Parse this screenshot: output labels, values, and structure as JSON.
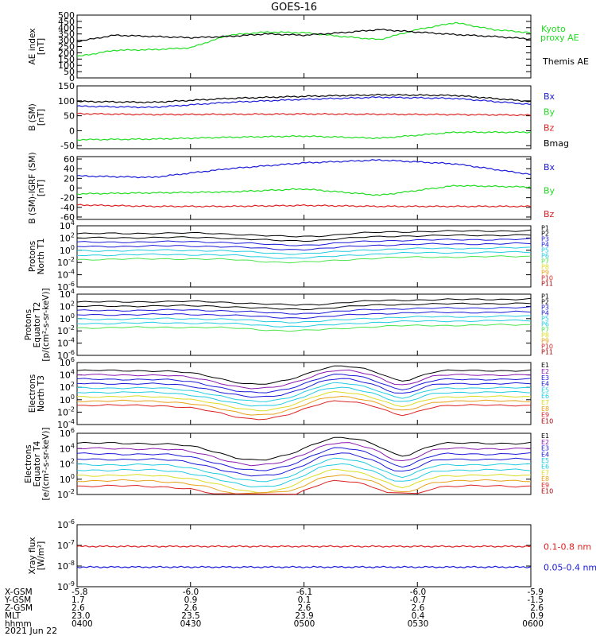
{
  "title": "GOES-16",
  "footer_date": "2021 Jun 22",
  "colors": {
    "black": "#000000",
    "green": "#22dd22",
    "blue": "#1a1ad8",
    "red": "#dd2222",
    "violet": "#8a1ab0",
    "cyan": "#22cce0",
    "lightgreen": "#4ee54e",
    "yellow": "#dcdc22",
    "orange": "#e8a018",
    "darkred": "#cc1111",
    "maroon": "#aa0000"
  },
  "chart_data": [
    {
      "id": "ae",
      "type": "line",
      "ylabel": [
        "AE index",
        "[nT]"
      ],
      "ylim": [
        0,
        500
      ],
      "yticks": [
        "0",
        "50",
        "100",
        "150",
        "200",
        "250",
        "300",
        "350",
        "400",
        "450",
        "500"
      ],
      "series": [
        {
          "name": "Kyoto proxy AE",
          "color": "green",
          "x": [
            0,
            10,
            20,
            30,
            40,
            50,
            60,
            70,
            80,
            90,
            100,
            110,
            120
          ],
          "y": [
            170,
            220,
            225,
            240,
            340,
            365,
            360,
            330,
            305,
            385,
            440,
            385,
            360
          ]
        },
        {
          "name": "Themis AE",
          "color": "black",
          "x": [
            0,
            10,
            20,
            30,
            40,
            50,
            60,
            70,
            80,
            90,
            100,
            110,
            120
          ],
          "y": [
            290,
            340,
            330,
            320,
            330,
            350,
            340,
            360,
            385,
            365,
            345,
            330,
            310
          ]
        }
      ]
    },
    {
      "id": "bsm",
      "type": "line",
      "ylabel": [
        "B (SM)",
        "[nT]"
      ],
      "ylim": [
        -60,
        150
      ],
      "yticks": [
        "-50",
        "0",
        "50",
        "100",
        "150"
      ],
      "series": [
        {
          "name": "Bx",
          "color": "blue",
          "x": [
            0,
            20,
            40,
            60,
            80,
            100,
            120
          ],
          "y": [
            82,
            78,
            95,
            105,
            112,
            108,
            88
          ]
        },
        {
          "name": "By",
          "color": "green",
          "x": [
            0,
            20,
            40,
            60,
            80,
            100,
            120
          ],
          "y": [
            -30,
            -28,
            -22,
            -18,
            -25,
            -5,
            -5
          ]
        },
        {
          "name": "Bz",
          "color": "red",
          "x": [
            0,
            20,
            40,
            60,
            80,
            100,
            120
          ],
          "y": [
            57,
            54,
            55,
            56,
            55,
            54,
            52
          ]
        },
        {
          "name": "Bmag",
          "color": "black",
          "x": [
            0,
            20,
            40,
            60,
            80,
            100,
            120
          ],
          "y": [
            98,
            95,
            108,
            115,
            120,
            118,
            98
          ]
        }
      ]
    },
    {
      "id": "bigrf",
      "type": "line",
      "ylabel": [
        "B (SM)-IGRF (SM)",
        "[nT]"
      ],
      "ylim": [
        -65,
        65
      ],
      "yticks": [
        "-60",
        "-40",
        "-20",
        "0",
        "20",
        "40",
        "60"
      ],
      "series": [
        {
          "name": "Bx",
          "color": "blue",
          "x": [
            0,
            20,
            40,
            60,
            80,
            100,
            120
          ],
          "y": [
            25,
            22,
            40,
            52,
            58,
            50,
            28
          ]
        },
        {
          "name": "By",
          "color": "green",
          "x": [
            0,
            20,
            40,
            60,
            80,
            100,
            120
          ],
          "y": [
            -12,
            -10,
            -8,
            -2,
            -15,
            5,
            2
          ]
        },
        {
          "name": "Bz",
          "color": "red",
          "x": [
            0,
            20,
            40,
            60,
            80,
            100,
            120
          ],
          "y": [
            -35,
            -38,
            -38,
            -36,
            -38,
            -38,
            -38
          ]
        }
      ]
    },
    {
      "id": "pnorth",
      "type": "line",
      "ylabel": [
        "Protons",
        "North T1"
      ],
      "ylog": true,
      "ylim": [
        -6,
        4
      ],
      "yticks": [
        "10^-6",
        "10^-4",
        "10^-2",
        "10^0",
        "10^2",
        "10^4"
      ],
      "legend": [
        "P1",
        "P2",
        "P3",
        "P4",
        "P5",
        "P6",
        "P7",
        "P8",
        "P9",
        "P10",
        "P11"
      ]
    },
    {
      "id": "peq",
      "type": "line",
      "ylabel": [
        "Protons",
        "Equator T2",
        "[p/(cm²-s-sr-keV)]"
      ],
      "ylog": true,
      "ylim": [
        -6,
        4
      ],
      "yticks": [
        "10^-6",
        "10^-4",
        "10^-2",
        "10^0",
        "10^2",
        "10^4"
      ],
      "legend": [
        "P1",
        "P2",
        "P3",
        "P4",
        "P5",
        "P6",
        "P7",
        "P8",
        "P9",
        "P10",
        "P11"
      ]
    },
    {
      "id": "enorth",
      "type": "line",
      "ylabel": [
        "Electrons",
        "North T3"
      ],
      "ylog": true,
      "ylim": [
        -4,
        6
      ],
      "yticks": [
        "10^-4",
        "10^-2",
        "10^0",
        "10^2",
        "10^4",
        "10^6"
      ],
      "legend": [
        "E1",
        "E2",
        "E3",
        "E4",
        "E5",
        "E6",
        "E7",
        "E8",
        "E9",
        "E10"
      ]
    },
    {
      "id": "eeq",
      "type": "line",
      "ylabel": [
        "Electrons",
        "Equator T4",
        "[e/(cm²-s-sr-keV)]"
      ],
      "ylog": true,
      "ylim": [
        -2,
        6
      ],
      "yticks": [
        "10^-2",
        "10^0",
        "10^2",
        "10^4",
        "10^6"
      ],
      "legend": [
        "E1",
        "E2",
        "E3",
        "E4",
        "E5",
        "E6",
        "E7",
        "E8",
        "E9",
        "E10"
      ]
    },
    {
      "id": "xray",
      "type": "line",
      "ylabel": [
        "Xray flux",
        "[W/m²]"
      ],
      "ylog": true,
      "ylim": [
        -9,
        -6
      ],
      "yticks": [
        "10^-9",
        "10^-8",
        "10^-7",
        "10^-6"
      ],
      "series": [
        {
          "name": "0.1-0.8 nm",
          "color": "red",
          "x": [
            0,
            120
          ],
          "y": [
            -7.05,
            -7.05
          ]
        },
        {
          "name": "0.05-0.4 nm",
          "color": "blue",
          "x": [
            0,
            120
          ],
          "y": [
            -8.05,
            -8.05
          ]
        }
      ]
    }
  ],
  "x_axis": {
    "row_labels": [
      "X-GSM",
      "Y-GSM",
      "Z-GSM",
      "MLT",
      "hhmm"
    ],
    "columns": [
      {
        "values": [
          "-5.8",
          "1.7",
          "2.6",
          "23.0",
          "0400"
        ]
      },
      {
        "values": [
          "-6.0",
          "0.9",
          "2.6",
          "23.5",
          "0430"
        ]
      },
      {
        "values": [
          "-6.1",
          "0.1",
          "2.6",
          "23.9",
          "0500"
        ]
      },
      {
        "values": [
          "-6.0",
          "-0.7",
          "2.6",
          "0.4",
          "0530"
        ]
      },
      {
        "values": [
          "-5.9",
          "-1.5",
          "2.6",
          "0.9",
          "0600"
        ]
      }
    ]
  }
}
